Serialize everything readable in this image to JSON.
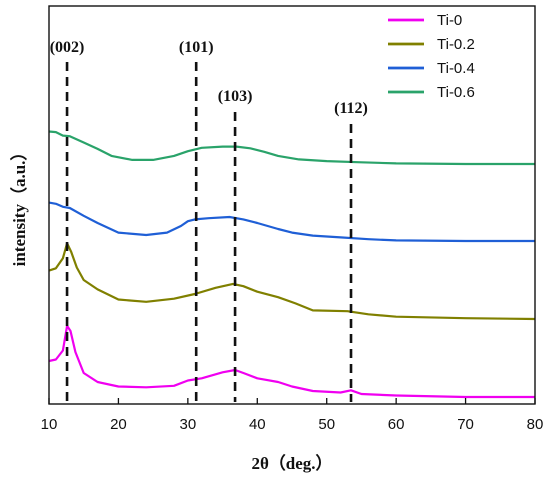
{
  "chart_data": {
    "type": "line",
    "xlabel": "2θ（deg.）",
    "ylabel": "intensity（a.u.）",
    "xlim": [
      10,
      80
    ],
    "xticks": [
      10,
      20,
      30,
      40,
      50,
      60,
      70,
      80
    ],
    "y_ticks_shown": false,
    "grid": false,
    "legend_position": "top-right",
    "series": [
      {
        "name": "Ti-0",
        "color": "#f000f0",
        "points": [
          [
            10,
            0.48
          ],
          [
            11,
            0.5
          ],
          [
            12,
            0.62
          ],
          [
            12.6,
            0.95
          ],
          [
            13.1,
            0.88
          ],
          [
            13.8,
            0.6
          ],
          [
            15,
            0.32
          ],
          [
            17,
            0.2
          ],
          [
            20,
            0.14
          ],
          [
            24,
            0.13
          ],
          [
            28,
            0.15
          ],
          [
            30,
            0.22
          ],
          [
            32,
            0.25
          ],
          [
            35,
            0.33
          ],
          [
            36.8,
            0.36
          ],
          [
            38,
            0.32
          ],
          [
            40,
            0.25
          ],
          [
            43,
            0.2
          ],
          [
            45,
            0.14
          ],
          [
            48,
            0.08
          ],
          [
            52,
            0.06
          ],
          [
            53.5,
            0.09
          ],
          [
            55,
            0.04
          ],
          [
            60,
            0.02
          ],
          [
            70,
            0.0
          ],
          [
            80,
            0.0
          ]
        ]
      },
      {
        "name": "Ti-0.2",
        "color": "#808000",
        "points": [
          [
            10,
            0.62
          ],
          [
            11,
            0.65
          ],
          [
            12,
            0.78
          ],
          [
            12.6,
            0.97
          ],
          [
            13.2,
            0.86
          ],
          [
            14,
            0.66
          ],
          [
            15,
            0.5
          ],
          [
            17,
            0.38
          ],
          [
            20,
            0.25
          ],
          [
            24,
            0.22
          ],
          [
            28,
            0.26
          ],
          [
            31,
            0.32
          ],
          [
            34,
            0.4
          ],
          [
            36.5,
            0.45
          ],
          [
            38,
            0.42
          ],
          [
            40,
            0.35
          ],
          [
            43,
            0.28
          ],
          [
            45.5,
            0.2
          ],
          [
            48,
            0.11
          ],
          [
            53,
            0.1
          ],
          [
            56,
            0.06
          ],
          [
            60,
            0.03
          ],
          [
            70,
            0.01
          ],
          [
            80,
            0.0
          ]
        ]
      },
      {
        "name": "Ti-0.4",
        "color": "#1f5fd6",
        "points": [
          [
            10,
            0.64
          ],
          [
            11,
            0.62
          ],
          [
            12,
            0.57
          ],
          [
            13,
            0.55
          ],
          [
            15,
            0.42
          ],
          [
            17,
            0.3
          ],
          [
            20,
            0.14
          ],
          [
            24,
            0.1
          ],
          [
            27,
            0.14
          ],
          [
            29,
            0.25
          ],
          [
            30,
            0.33
          ],
          [
            31,
            0.36
          ],
          [
            33,
            0.38
          ],
          [
            36,
            0.4
          ],
          [
            38,
            0.36
          ],
          [
            40,
            0.3
          ],
          [
            43,
            0.2
          ],
          [
            45,
            0.14
          ],
          [
            48,
            0.09
          ],
          [
            52,
            0.06
          ],
          [
            56,
            0.03
          ],
          [
            60,
            0.01
          ],
          [
            70,
            0.0
          ],
          [
            80,
            0.0
          ]
        ]
      },
      {
        "name": "Ti-0.6",
        "color": "#2aa36a",
        "points": [
          [
            10,
            0.56
          ],
          [
            11,
            0.55
          ],
          [
            12,
            0.49
          ],
          [
            13,
            0.48
          ],
          [
            15,
            0.37
          ],
          [
            17,
            0.26
          ],
          [
            19,
            0.14
          ],
          [
            22,
            0.07
          ],
          [
            25,
            0.07
          ],
          [
            28,
            0.14
          ],
          [
            30,
            0.22
          ],
          [
            32,
            0.28
          ],
          [
            35,
            0.3
          ],
          [
            37,
            0.3
          ],
          [
            39,
            0.27
          ],
          [
            41,
            0.21
          ],
          [
            43,
            0.14
          ],
          [
            46,
            0.08
          ],
          [
            50,
            0.05
          ],
          [
            55,
            0.03
          ],
          [
            60,
            0.01
          ],
          [
            70,
            0.0
          ],
          [
            80,
            0.0
          ]
        ]
      }
    ],
    "peak_markers": [
      {
        "label": "(002)",
        "x": 12.6
      },
      {
        "label": "(101)",
        "x": 31.2
      },
      {
        "label": "(103)",
        "x": 36.8
      },
      {
        "label": "(112)",
        "x": 53.5
      }
    ]
  }
}
